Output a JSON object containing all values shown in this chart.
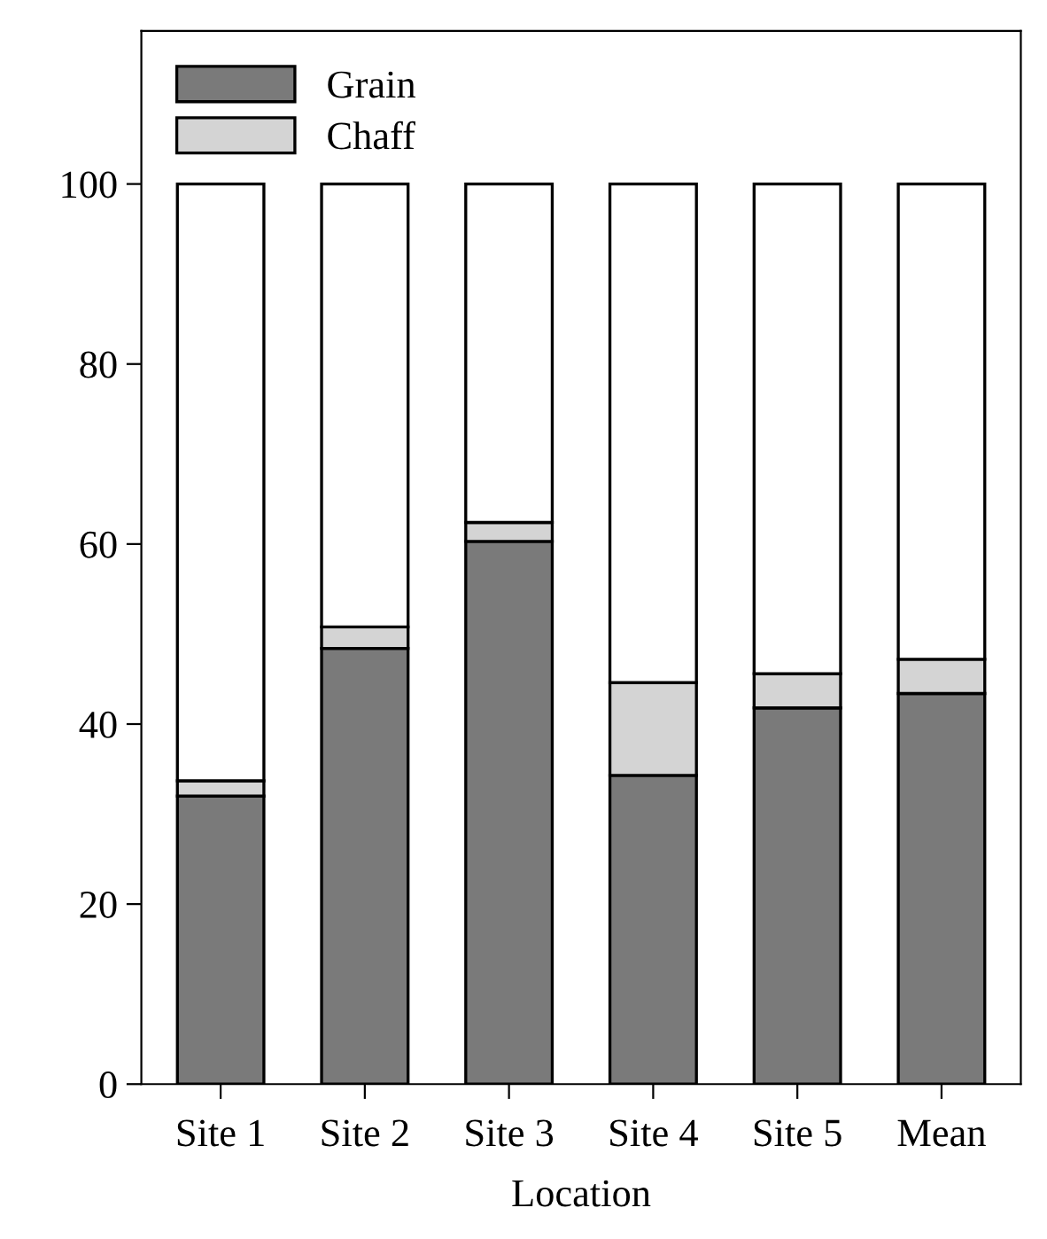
{
  "chart_data": {
    "type": "bar",
    "stacked": true,
    "xlabel": "Location",
    "categories": [
      "Site 1",
      "Site 2",
      "Site 3",
      "Site 4",
      "Site 5",
      "Mean"
    ],
    "series": [
      {
        "name": "Grain",
        "color": "#7a7a7a",
        "values": [
          32.0,
          48.4,
          60.3,
          34.3,
          41.8,
          43.4
        ]
      },
      {
        "name": "Chaff",
        "color": "#d4d4d4",
        "values": [
          1.7,
          2.4,
          2.1,
          10.3,
          3.8,
          3.8
        ]
      },
      {
        "color": "#ffffff",
        "values": [
          66.3,
          49.2,
          37.6,
          55.4,
          54.4,
          52.8
        ]
      }
    ],
    "ylim": [
      0,
      117
    ],
    "yticks": [
      0,
      20,
      40,
      60,
      80,
      100
    ],
    "grid": false,
    "legend": "top left"
  }
}
